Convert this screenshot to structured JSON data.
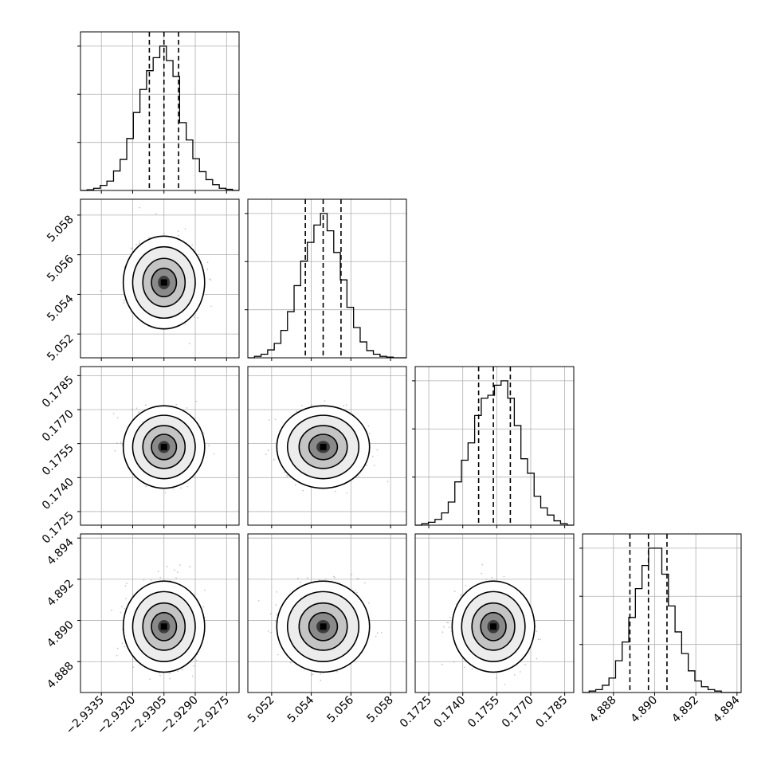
{
  "chart_data": {
    "type": "corner",
    "parameters": 4,
    "grid": true,
    "axes": [
      {
        "range": [
          -2.9345,
          -2.9269
        ],
        "ticks": [
          -2.9335,
          -2.932,
          -2.9305,
          -2.929,
          -2.9275
        ],
        "tick_labels": [
          "−2.9335",
          "−2.9320",
          "−2.9305",
          "−2.9290",
          "−2.9275"
        ],
        "quantiles": [
          -2.9312,
          -2.9305,
          -2.9298
        ],
        "center": -2.9305,
        "sigma": 0.00075
      },
      {
        "range": [
          5.0508,
          5.0588
        ],
        "ticks": [
          5.052,
          5.054,
          5.056,
          5.058
        ],
        "tick_labels": [
          "5.052",
          "5.054",
          "5.056",
          "5.058"
        ],
        "quantiles": [
          5.0537,
          5.0546,
          5.0555
        ],
        "center": 5.0546,
        "sigma": 0.0009
      },
      {
        "range": [
          0.1719,
          0.1789
        ],
        "ticks": [
          0.1725,
          0.174,
          0.1755,
          0.177,
          0.1785
        ],
        "tick_labels": [
          "0.1725",
          "0.1740",
          "0.1755",
          "0.1770",
          "0.1785"
        ],
        "quantiles": [
          0.1747,
          0.17535,
          0.1761
        ],
        "center": 0.17535,
        "sigma": 0.0007
      },
      {
        "range": [
          4.8865,
          4.8942
        ],
        "ticks": [
          4.888,
          4.89,
          4.892,
          4.894
        ],
        "tick_labels": [
          "4.888",
          "4.890",
          "4.892",
          "4.894"
        ],
        "quantiles": [
          4.8888,
          4.8897,
          4.8906
        ],
        "center": 4.8897,
        "sigma": 0.00085
      }
    ],
    "histograms": [
      [
        0,
        0.005,
        0.015,
        0.035,
        0.065,
        0.135,
        0.215,
        0.36,
        0.54,
        0.7,
        0.83,
        0.92,
        1.0,
        0.9,
        0.79,
        0.47,
        0.35,
        0.22,
        0.13,
        0.075,
        0.04,
        0.015,
        0.008,
        0
      ],
      [
        0,
        0.01,
        0.025,
        0.055,
        0.1,
        0.19,
        0.32,
        0.5,
        0.67,
        0.8,
        0.92,
        1.0,
        0.88,
        0.73,
        0.54,
        0.35,
        0.21,
        0.11,
        0.05,
        0.025,
        0.01,
        0.005,
        0,
        0
      ],
      [
        0,
        0.01,
        0.02,
        0.04,
        0.085,
        0.16,
        0.3,
        0.45,
        0.57,
        0.76,
        0.88,
        0.9,
        0.97,
        1.0,
        0.88,
        0.69,
        0.46,
        0.36,
        0.2,
        0.12,
        0.07,
        0.03,
        0.01,
        0
      ],
      [
        0,
        0.01,
        0.02,
        0.05,
        0.1,
        0.22,
        0.35,
        0.52,
        0.72,
        0.88,
        1.0,
        1.0,
        0.82,
        0.6,
        0.42,
        0.27,
        0.15,
        0.08,
        0.04,
        0.02,
        0.01,
        0,
        0,
        0
      ]
    ]
  }
}
